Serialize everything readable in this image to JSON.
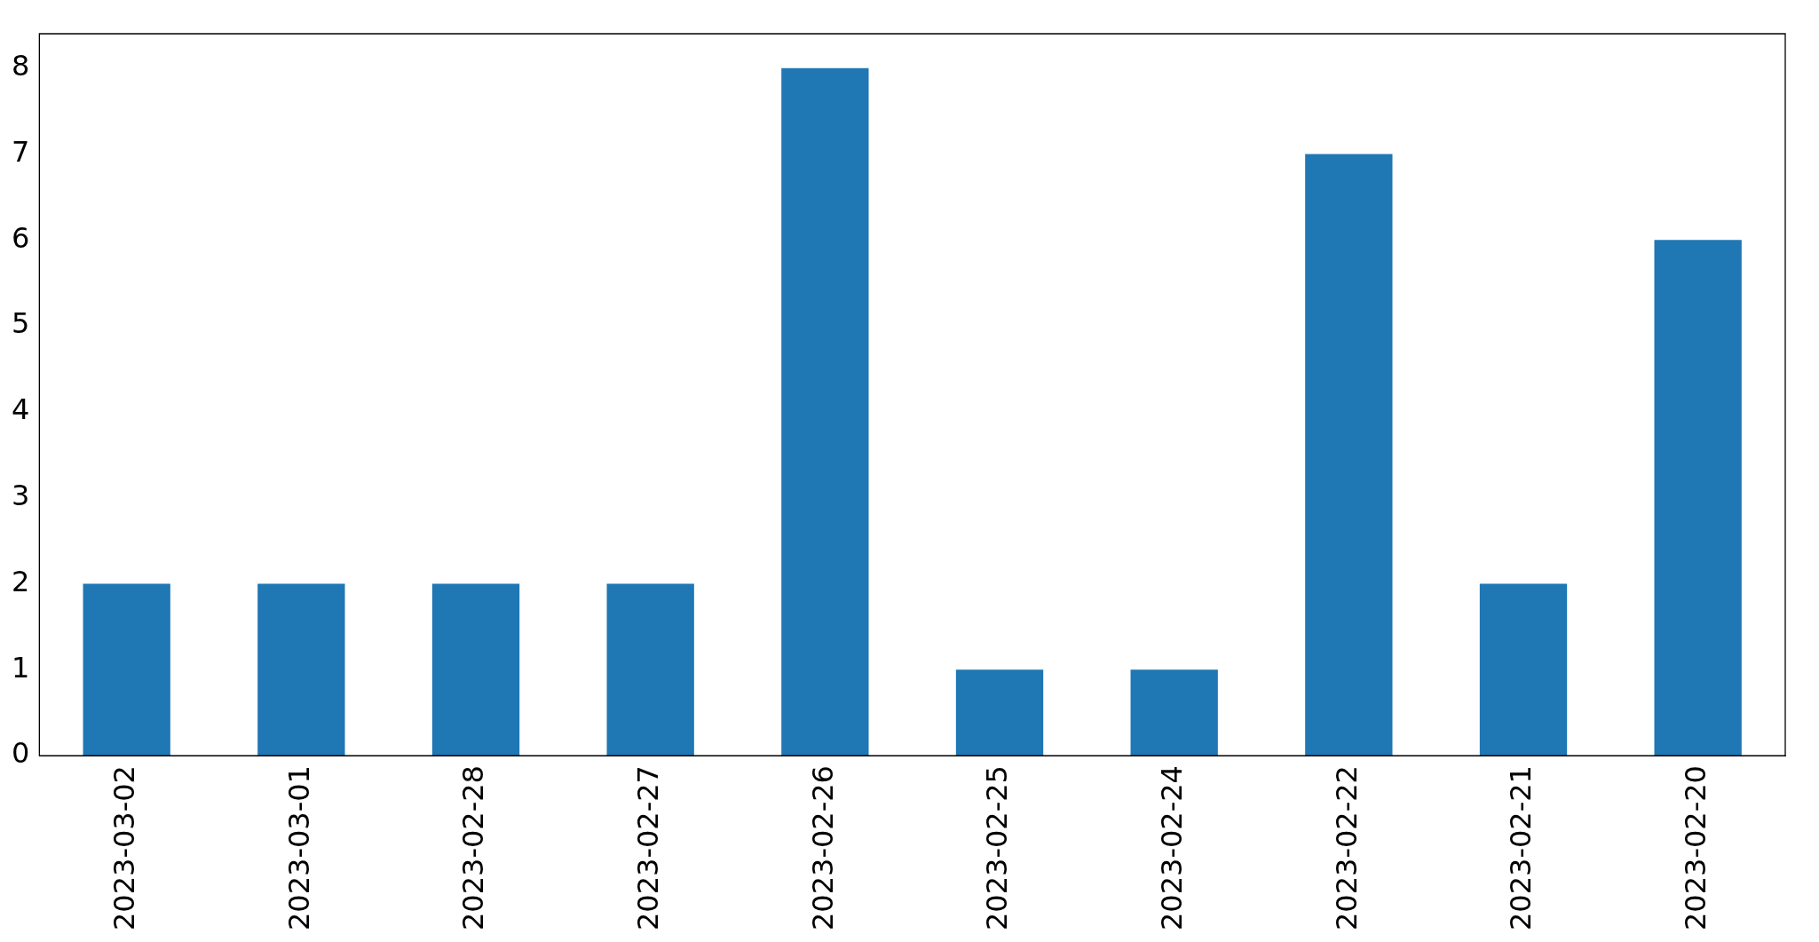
{
  "chart_data": {
    "type": "bar",
    "categories": [
      "2023-03-02",
      "2023-03-01",
      "2023-02-28",
      "2023-02-27",
      "2023-02-26",
      "2023-02-25",
      "2023-02-24",
      "2023-02-22",
      "2023-02-21",
      "2023-02-20"
    ],
    "values": [
      2,
      2,
      2,
      2,
      8,
      1,
      1,
      7,
      2,
      6
    ],
    "color": "#1f77b4",
    "ylim": [
      0,
      8.4
    ],
    "yticks": [
      0,
      1,
      2,
      3,
      4,
      5,
      6,
      7,
      8
    ],
    "grid": false,
    "legend": false
  }
}
